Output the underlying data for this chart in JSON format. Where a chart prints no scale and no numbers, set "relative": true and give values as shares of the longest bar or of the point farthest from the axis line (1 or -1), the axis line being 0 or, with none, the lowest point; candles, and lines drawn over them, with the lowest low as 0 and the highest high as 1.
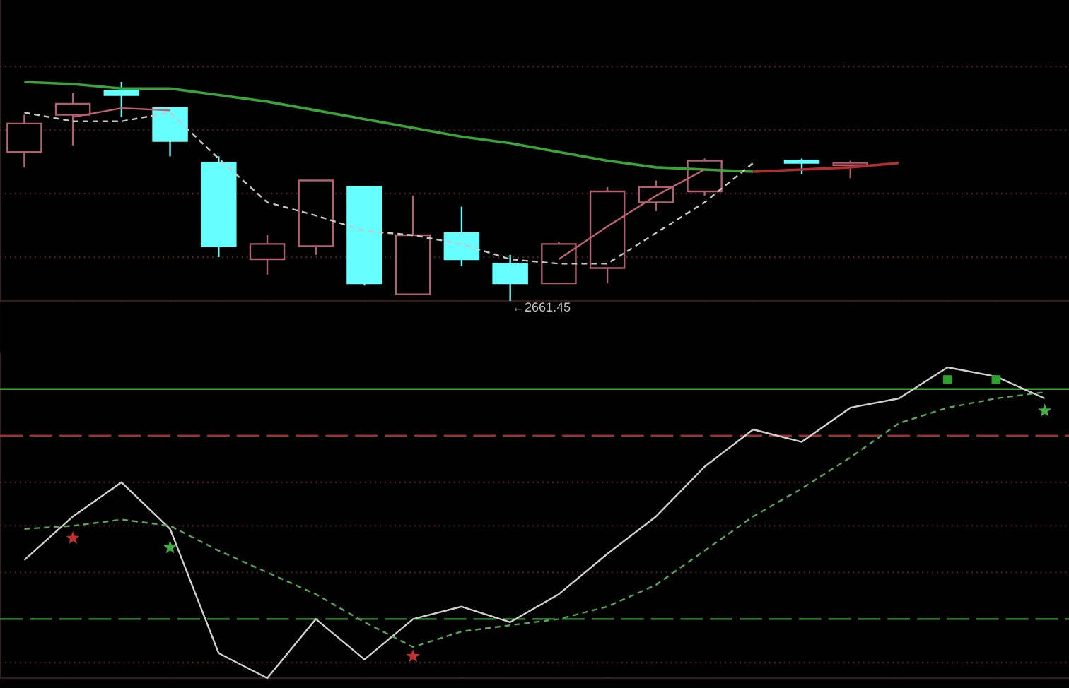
{
  "chart_data": [
    {
      "type": "candlestick",
      "relative": true,
      "categories": [
        null,
        null,
        null,
        null,
        null,
        null,
        null,
        null,
        null,
        null,
        null,
        null,
        null,
        null,
        null,
        null,
        null,
        null,
        null,
        null,
        null,
        null
      ],
      "ohlc": [
        [
          0.68,
          0.85,
          0.61,
          0.81
        ],
        [
          0.85,
          0.95,
          0.71,
          0.9
        ],
        [
          0.96,
          1.0,
          0.84,
          0.94
        ],
        [
          0.88,
          0.88,
          0.66,
          0.73
        ],
        [
          0.63,
          0.66,
          0.2,
          0.25
        ],
        [
          0.19,
          0.3,
          0.12,
          0.26
        ],
        [
          0.25,
          0.55,
          0.21,
          0.55
        ],
        [
          0.52,
          0.52,
          0.07,
          0.08
        ],
        [
          0.03,
          0.48,
          0.03,
          0.3
        ],
        [
          0.31,
          0.43,
          0.16,
          0.19
        ],
        [
          0.17,
          0.21,
          0.0,
          0.08
        ],
        [
          0.08,
          0.27,
          0.08,
          0.26
        ],
        [
          0.15,
          0.52,
          0.08,
          0.5
        ],
        [
          0.45,
          0.55,
          0.41,
          0.52
        ],
        [
          0.5,
          0.65,
          0.48,
          0.64
        ],
        null,
        [
          0.64,
          0.65,
          0.58,
          0.63
        ],
        [
          0.62,
          0.64,
          0.56,
          0.63
        ],
        null,
        null,
        null,
        null
      ],
      "colors": [
        "#b06070",
        "#b06070",
        "#66ffff",
        "#66ffff",
        "#66ffff",
        "#b06070",
        "#b06070",
        "#66ffff",
        "#b06070",
        "#66ffff",
        "#66ffff",
        "#b06070",
        "#b06070",
        "#b06070",
        "#b06070",
        null,
        "#66ffff",
        "#b06070",
        null,
        null,
        null,
        null
      ],
      "series": [
        {
          "type": "line",
          "color": "#3aa33a",
          "values": [
            1.0,
            0.99,
            0.97,
            0.97,
            0.94,
            0.91,
            0.87,
            0.83,
            0.79,
            0.75,
            0.72,
            0.68,
            0.64,
            0.61,
            0.6,
            0.59,
            null,
            null,
            null,
            null,
            null,
            null
          ]
        },
        {
          "type": "line",
          "color": "#b03030",
          "values": [
            null,
            null,
            null,
            null,
            null,
            null,
            null,
            null,
            null,
            null,
            null,
            null,
            null,
            null,
            null,
            0.59,
            0.6,
            0.61,
            0.63,
            null,
            null,
            null
          ]
        },
        {
          "type": "line",
          "color": "#c8c8c8",
          "line_style": "dashed",
          "values": [
            0.86,
            0.82,
            0.82,
            0.86,
            0.65,
            0.45,
            0.39,
            0.32,
            0.3,
            0.26,
            0.19,
            0.17,
            0.17,
            0.31,
            0.45,
            0.63,
            null,
            null,
            null,
            null,
            null,
            null
          ]
        },
        {
          "type": "line",
          "color": "#c06070",
          "values": [
            null,
            0.84,
            0.88,
            0.87,
            null,
            null,
            null,
            null,
            null,
            null,
            null,
            0.19,
            0.34,
            0.48,
            0.6,
            null,
            null,
            null,
            null,
            null,
            null,
            null
          ]
        }
      ],
      "ref_lines": [
        {
          "axis": "y",
          "value": 1.07,
          "color": "#502020",
          "line_style": "dotted"
        },
        {
          "axis": "y",
          "value": 0.78,
          "color": "#502020",
          "line_style": "dotted"
        },
        {
          "axis": "y",
          "value": 0.49,
          "color": "#502020",
          "line_style": "dotted"
        },
        {
          "axis": "y",
          "value": 0.2,
          "color": "#502020",
          "line_style": "dotted"
        }
      ],
      "annotations": [
        "←2661.45"
      ]
    },
    {
      "type": "line",
      "relative": true,
      "categories": [
        null,
        null,
        null,
        null,
        null,
        null,
        null,
        null,
        null,
        null,
        null,
        null,
        null,
        null,
        null,
        null,
        null,
        null,
        null,
        null,
        null,
        null
      ],
      "series": [
        {
          "type": "line",
          "color": "#d0d0d0",
          "values": [
            0.38,
            0.52,
            0.63,
            0.48,
            0.08,
            0.0,
            0.19,
            0.06,
            0.19,
            0.23,
            0.18,
            0.27,
            0.4,
            0.52,
            0.68,
            0.8,
            0.76,
            0.87,
            0.9,
            1.0,
            0.97,
            0.9
          ]
        },
        {
          "type": "line",
          "color": "#5aa35a",
          "line_style": "dashed",
          "values": [
            0.48,
            0.49,
            0.51,
            0.49,
            0.41,
            0.34,
            0.27,
            0.18,
            0.1,
            0.15,
            0.17,
            0.19,
            0.23,
            0.3,
            0.41,
            0.52,
            0.61,
            0.71,
            0.82,
            0.87,
            0.9,
            0.92
          ]
        },
        {
          "type": "scatter",
          "marker": "star",
          "color": "#c03030",
          "values": [
            null,
            0.45,
            null,
            null,
            null,
            null,
            null,
            null,
            0.07,
            null,
            null,
            null,
            null,
            null,
            null,
            null,
            null,
            null,
            null,
            null,
            null,
            null
          ]
        },
        {
          "type": "scatter",
          "marker": "star",
          "color": "#40b040",
          "values": [
            null,
            null,
            null,
            0.42,
            null,
            null,
            null,
            null,
            null,
            null,
            null,
            null,
            null,
            null,
            null,
            null,
            null,
            null,
            null,
            null,
            null,
            0.86
          ]
        },
        {
          "type": "scatter",
          "marker": "square",
          "color": "#30a030",
          "values": [
            null,
            null,
            null,
            null,
            null,
            null,
            null,
            null,
            null,
            null,
            null,
            null,
            null,
            null,
            null,
            null,
            null,
            null,
            null,
            0.96,
            0.96,
            null
          ]
        }
      ],
      "ref_lines": [
        {
          "axis": "y",
          "value": 0.93,
          "color": "#40a040",
          "line_style": "solid"
        },
        {
          "axis": "y",
          "value": 0.78,
          "color": "#a03030",
          "line_style": "dashed"
        },
        {
          "axis": "y",
          "value": 0.63,
          "color": "#502020",
          "line_style": "dotted"
        },
        {
          "axis": "y",
          "value": 0.49,
          "color": "#502020",
          "line_style": "dotted"
        },
        {
          "axis": "y",
          "value": 0.34,
          "color": "#502020",
          "line_style": "dotted"
        },
        {
          "axis": "y",
          "value": 0.19,
          "color": "#40a040",
          "line_style": "dashed"
        },
        {
          "axis": "y",
          "value": 0.05,
          "color": "#502020",
          "line_style": "dotted"
        }
      ]
    }
  ]
}
